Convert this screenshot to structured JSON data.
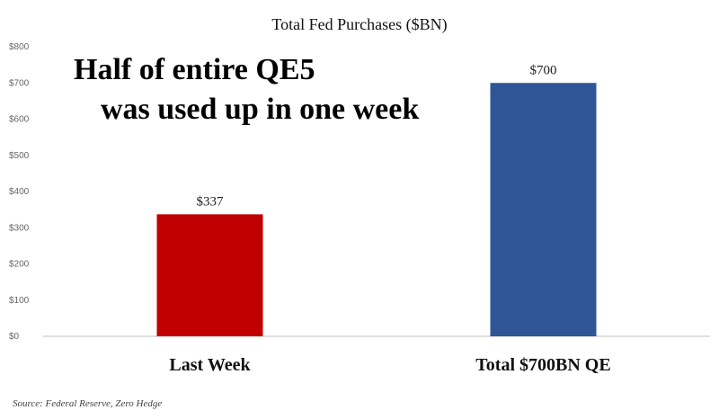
{
  "chart_data": {
    "type": "bar",
    "title": "Total Fed Purchases ($BN)",
    "annotation_lines": [
      "Half of entire QE5",
      "was used up in one week"
    ],
    "categories": [
      "Last Week",
      "Total $700BN QE"
    ],
    "values": [
      337,
      700
    ],
    "value_labels": [
      "$337",
      "$700"
    ],
    "bar_colors": [
      "#c00000",
      "#2f5597"
    ],
    "ylim": [
      0,
      800
    ],
    "yticks": [
      0,
      100,
      200,
      300,
      400,
      500,
      600,
      700,
      800
    ],
    "ytick_labels": [
      "$0",
      "$100",
      "$200",
      "$300",
      "$400",
      "$500",
      "$600",
      "$700",
      "$800"
    ],
    "grid": false,
    "source": "Source: Federal Reserve, Zero Hedge"
  }
}
